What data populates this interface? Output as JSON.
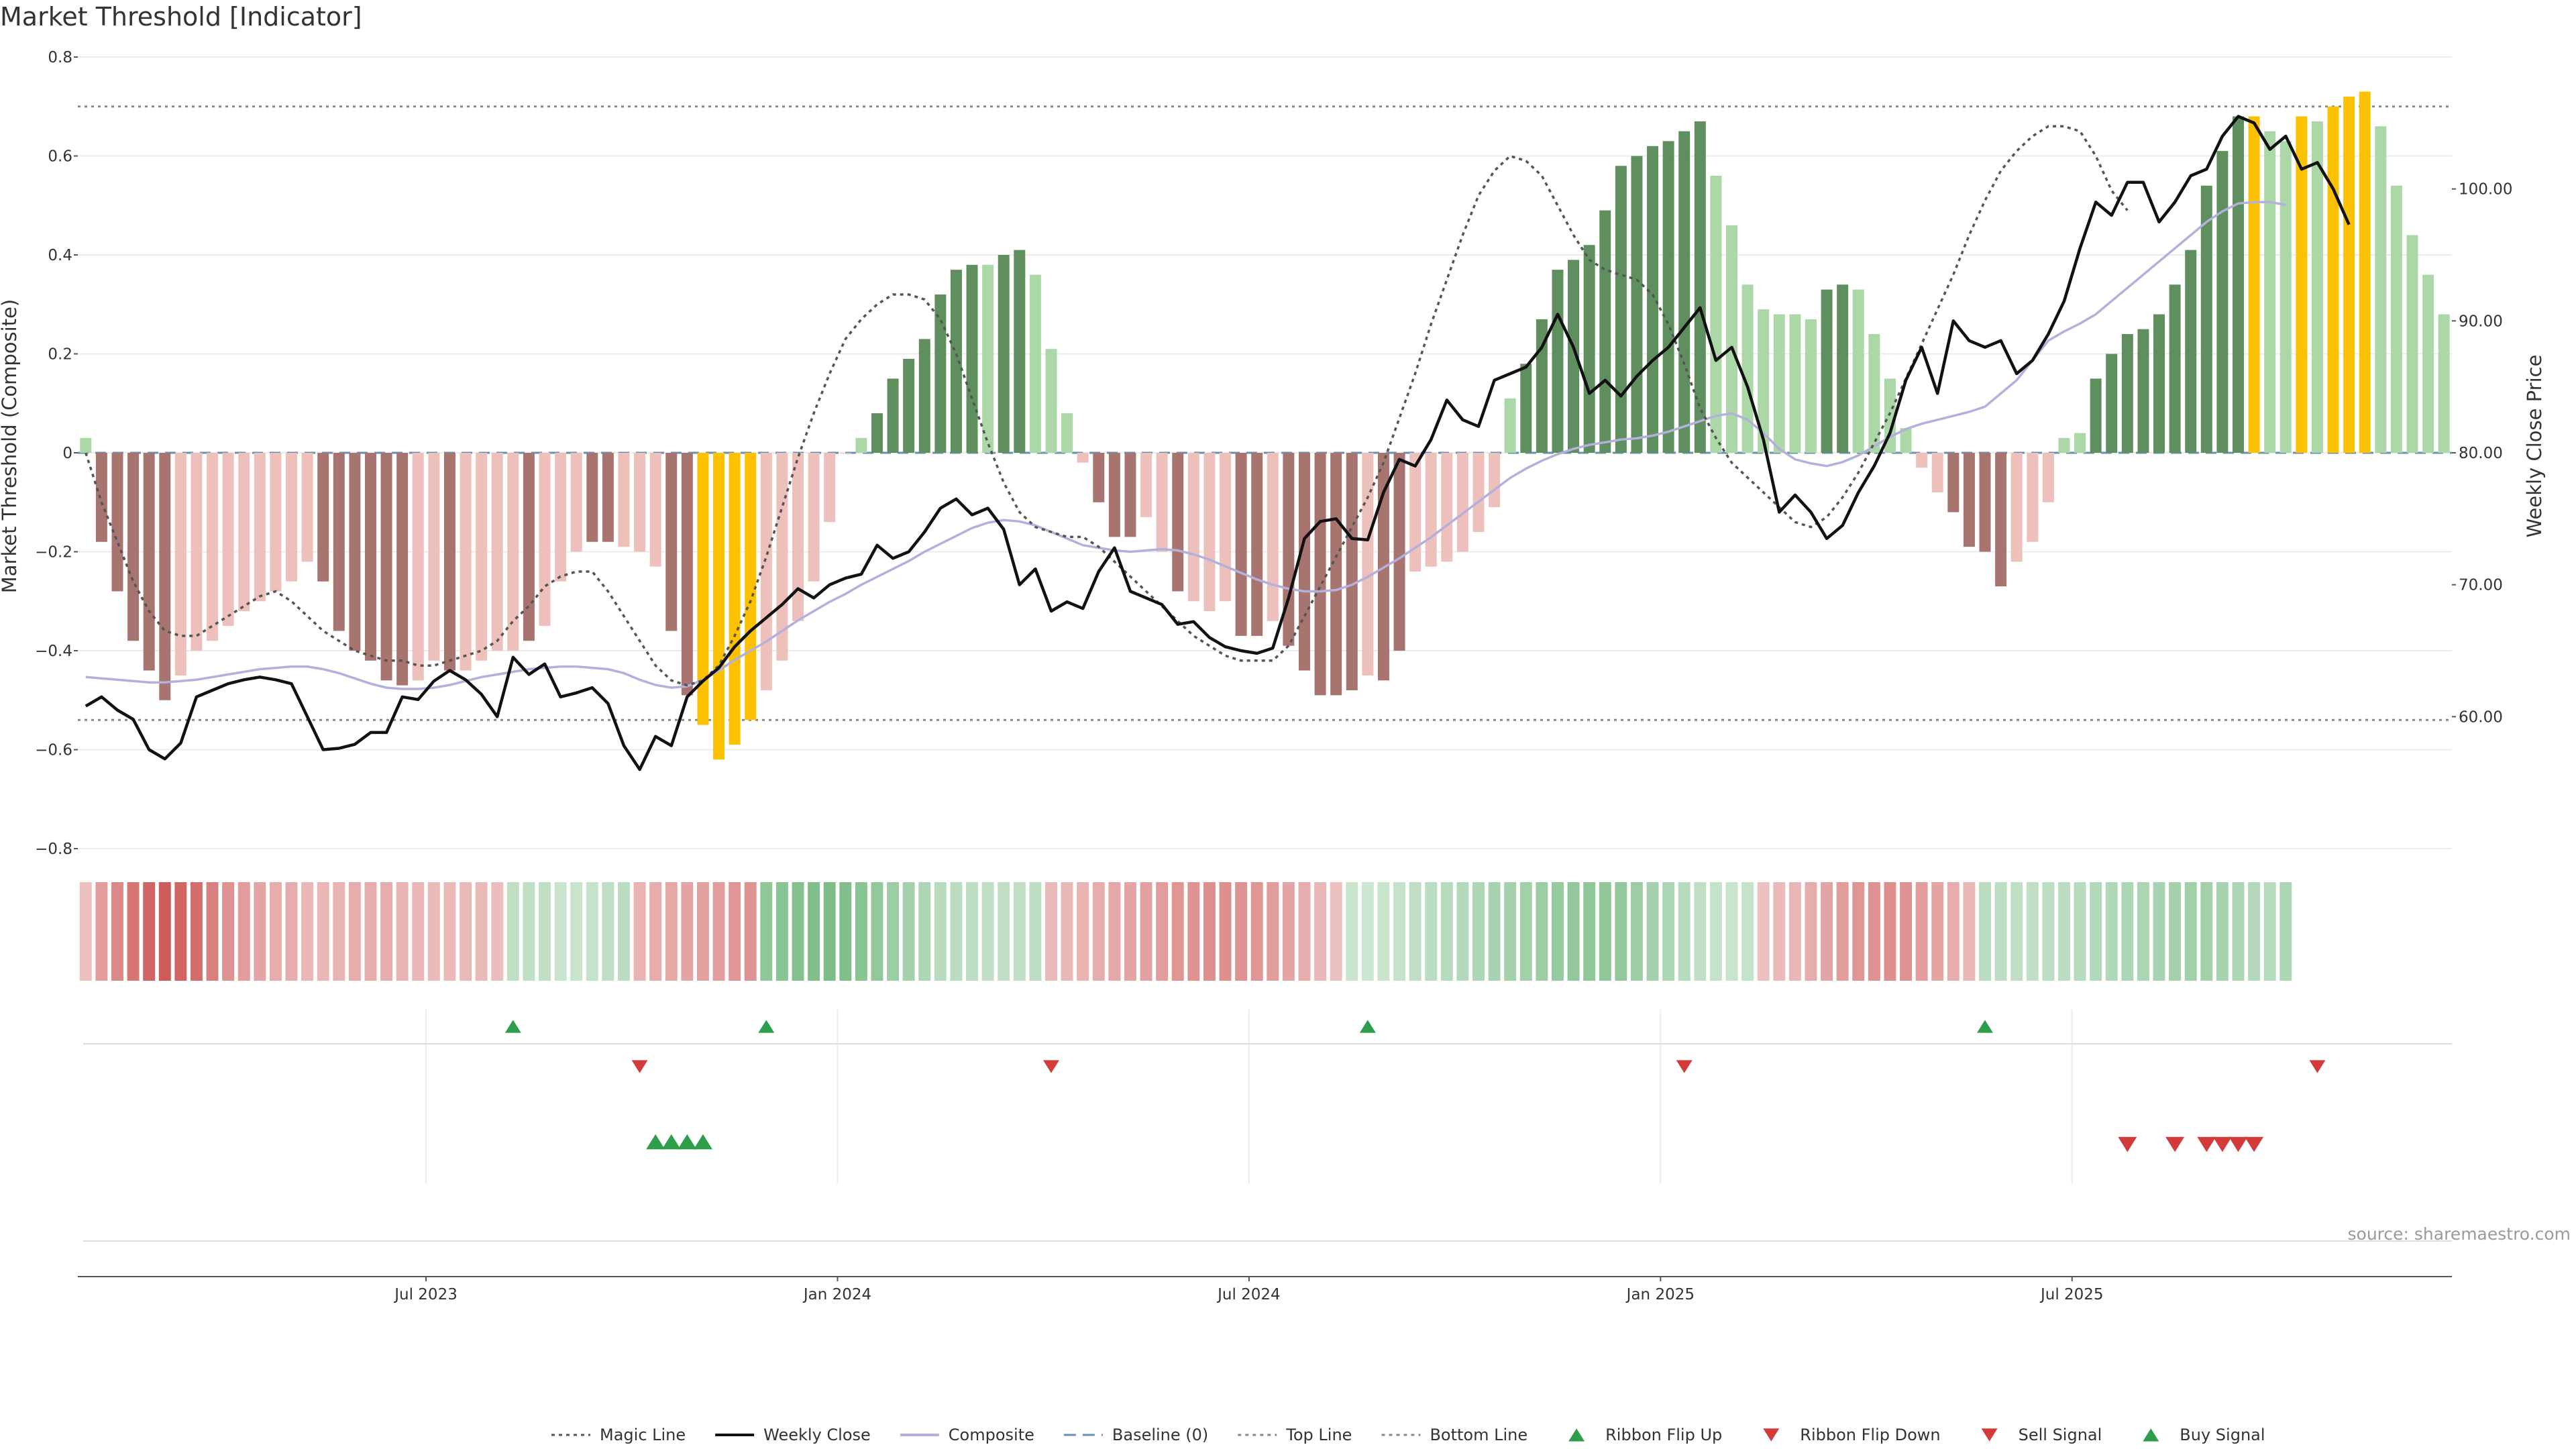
{
  "title": "Market Threshold [Indicator]",
  "source": "source: sharemaestro.com",
  "colors": {
    "bar_dark_red": "#a87470",
    "bar_light_red": "#edc0bb",
    "bar_dark_green": "#5f8f5f",
    "bar_light_green": "#acd8a8",
    "bar_gold": "#fcc100",
    "magic_line": "#555555",
    "weekly_close": "#111111",
    "composite": "#b3b0dc",
    "baseline": "#6a8fb0",
    "threshold_lines": "#888888",
    "signal_up": "#2e9e4a",
    "signal_down": "#d33a3a"
  },
  "chart_data": {
    "type": "bar",
    "y_axis_left": {
      "label": "Market Threshold (Composite)",
      "ylim": [
        -0.8,
        0.8
      ],
      "ticks": [
        {
          "v": 0.8,
          "label": "0.8"
        },
        {
          "v": 0.6,
          "label": "0.6"
        },
        {
          "v": 0.4,
          "label": "0.4"
        },
        {
          "v": 0.2,
          "label": "0.2"
        },
        {
          "v": 0,
          "label": "0"
        },
        {
          "v": -0.2,
          "label": "−0.2"
        },
        {
          "v": -0.4,
          "label": "−0.4"
        },
        {
          "v": -0.6,
          "label": "−0.6"
        },
        {
          "v": -0.8,
          "label": "−0.8"
        }
      ]
    },
    "y_axis_right": {
      "label": "Weekly Close Price",
      "ylim": [
        50,
        110
      ],
      "ticks": [
        {
          "v": 100,
          "label": "100.00"
        },
        {
          "v": 90,
          "label": "90.00"
        },
        {
          "v": 80,
          "label": "80.00"
        },
        {
          "v": 70,
          "label": "70.00"
        },
        {
          "v": 60,
          "label": "60.00"
        }
      ]
    },
    "x_axis": {
      "ticks": [
        {
          "label": "Jul 2023",
          "week": 21.5
        },
        {
          "label": "Jan 2024",
          "week": 47.5
        },
        {
          "label": "Jul 2024",
          "week": 73.5
        },
        {
          "label": "Jan 2025",
          "week": 99.5
        },
        {
          "label": "Jul 2025",
          "week": 125.5
        }
      ]
    },
    "top_line": 0.7,
    "bottom_line": -0.54,
    "composite_bars": [
      0.03,
      -0.18,
      -0.28,
      -0.38,
      -0.44,
      -0.5,
      -0.45,
      -0.4,
      -0.38,
      -0.35,
      -0.32,
      -0.3,
      -0.28,
      -0.26,
      -0.22,
      -0.26,
      -0.36,
      -0.4,
      -0.42,
      -0.46,
      -0.47,
      -0.46,
      -0.42,
      -0.44,
      -0.44,
      -0.42,
      -0.4,
      -0.4,
      -0.38,
      -0.35,
      -0.26,
      -0.2,
      -0.18,
      -0.18,
      -0.19,
      -0.2,
      -0.23,
      -0.36,
      -0.49,
      -0.55,
      -0.62,
      -0.59,
      -0.54,
      -0.48,
      -0.42,
      -0.34,
      -0.26,
      -0.14,
      0.0,
      0.03,
      0.08,
      0.15,
      0.19,
      0.23,
      0.32,
      0.37,
      0.38,
      0.38,
      0.4,
      0.41,
      0.36,
      0.21,
      0.08,
      -0.02,
      -0.1,
      -0.17,
      -0.17,
      -0.13,
      -0.2,
      -0.28,
      -0.3,
      -0.32,
      -0.3,
      -0.37,
      -0.37,
      -0.34,
      -0.39,
      -0.44,
      -0.49,
      -0.49,
      -0.48,
      -0.45,
      -0.46,
      -0.4,
      -0.24,
      -0.23,
      -0.22,
      -0.2,
      -0.16,
      -0.11,
      0.11,
      0.18,
      0.27,
      0.37,
      0.39,
      0.42,
      0.49,
      0.58,
      0.6,
      0.62,
      0.63,
      0.65,
      0.67,
      0.56,
      0.46,
      0.34,
      0.29,
      0.28,
      0.28,
      0.27,
      0.33,
      0.34,
      0.33,
      0.24,
      0.15,
      0.05,
      -0.03,
      -0.08,
      -0.12,
      -0.19,
      -0.2,
      -0.27,
      -0.22,
      -0.18,
      -0.1,
      0.03,
      0.04,
      0.15,
      0.2,
      0.24,
      0.25,
      0.28,
      0.34,
      0.41,
      0.54,
      0.61,
      0.68,
      0.68,
      0.65,
      0.63,
      0.68,
      0.67,
      0.7,
      0.72,
      0.73,
      0.66,
      0.54,
      0.44,
      0.36,
      0.28
    ],
    "bar_colors": [
      "light_green",
      "dark_red",
      "dark_red",
      "dark_red",
      "dark_red",
      "dark_red",
      "light_red",
      "light_red",
      "light_red",
      "light_red",
      "light_red",
      "light_red",
      "light_red",
      "light_red",
      "light_red",
      "dark_red",
      "dark_red",
      "dark_red",
      "dark_red",
      "dark_red",
      "dark_red",
      "light_red",
      "light_red",
      "dark_red",
      "light_red",
      "light_red",
      "light_red",
      "light_red",
      "dark_red",
      "light_red",
      "light_red",
      "light_red",
      "dark_red",
      "dark_red",
      "light_red",
      "light_red",
      "light_red",
      "dark_red",
      "dark_red",
      "gold",
      "gold",
      "gold",
      "gold",
      "light_red",
      "light_red",
      "light_red",
      "light_red",
      "light_red",
      "light_red",
      "light_green",
      "dark_green",
      "dark_green",
      "dark_green",
      "dark_green",
      "dark_green",
      "dark_green",
      "dark_green",
      "light_green",
      "dark_green",
      "dark_green",
      "light_green",
      "light_green",
      "light_green",
      "light_red",
      "dark_red",
      "dark_red",
      "dark_red",
      "light_red",
      "light_red",
      "dark_red",
      "light_red",
      "light_red",
      "light_red",
      "dark_red",
      "dark_red",
      "light_red",
      "dark_red",
      "dark_red",
      "dark_red",
      "dark_red",
      "dark_red",
      "light_red",
      "dark_red",
      "dark_red",
      "light_red",
      "light_red",
      "light_red",
      "light_red",
      "light_red",
      "light_red",
      "light_green",
      "dark_green",
      "dark_green",
      "dark_green",
      "dark_green",
      "dark_green",
      "dark_green",
      "dark_green",
      "dark_green",
      "dark_green",
      "dark_green",
      "dark_green",
      "dark_green",
      "light_green",
      "light_green",
      "light_green",
      "light_green",
      "light_green",
      "light_green",
      "light_green",
      "dark_green",
      "dark_green",
      "light_green",
      "light_green",
      "light_green",
      "light_green",
      "light_red",
      "light_red",
      "dark_red",
      "dark_red",
      "dark_red",
      "dark_red",
      "light_red",
      "light_red",
      "light_red",
      "light_green",
      "light_green",
      "dark_green",
      "dark_green",
      "dark_green",
      "dark_green",
      "dark_green",
      "dark_green",
      "dark_green",
      "dark_green",
      "dark_green",
      "dark_green",
      "gold",
      "light_green",
      "light_green",
      "gold",
      "light_green",
      "gold",
      "gold",
      "gold",
      "light_green",
      "light_green",
      "light_green",
      "light_green",
      "light_green"
    ],
    "magic_line": [
      0.0,
      -0.1,
      -0.18,
      -0.26,
      -0.32,
      -0.36,
      -0.37,
      -0.37,
      -0.35,
      -0.33,
      -0.31,
      -0.29,
      -0.28,
      -0.3,
      -0.33,
      -0.36,
      -0.38,
      -0.4,
      -0.41,
      -0.42,
      -0.42,
      -0.43,
      -0.43,
      -0.42,
      -0.41,
      -0.4,
      -0.38,
      -0.34,
      -0.31,
      -0.27,
      -0.25,
      -0.24,
      -0.24,
      -0.28,
      -0.33,
      -0.38,
      -0.43,
      -0.46,
      -0.47,
      -0.46,
      -0.43,
      -0.37,
      -0.3,
      -0.21,
      -0.11,
      -0.01,
      0.08,
      0.16,
      0.23,
      0.27,
      0.3,
      0.32,
      0.32,
      0.31,
      0.27,
      0.2,
      0.11,
      0.02,
      -0.06,
      -0.12,
      -0.15,
      -0.16,
      -0.17,
      -0.17,
      -0.19,
      -0.22,
      -0.25,
      -0.28,
      -0.31,
      -0.34,
      -0.37,
      -0.39,
      -0.41,
      -0.42,
      -0.42,
      -0.42,
      -0.39,
      -0.33,
      -0.27,
      -0.21,
      -0.15,
      -0.09,
      -0.02,
      0.07,
      0.16,
      0.26,
      0.35,
      0.44,
      0.52,
      0.57,
      0.6,
      0.59,
      0.56,
      0.5,
      0.44,
      0.39,
      0.37,
      0.36,
      0.35,
      0.32,
      0.26,
      0.18,
      0.09,
      0.03,
      -0.02,
      -0.05,
      -0.08,
      -0.11,
      -0.14,
      -0.15,
      -0.13,
      -0.09,
      -0.04,
      0.02,
      0.08,
      0.15,
      0.22,
      0.29,
      0.36,
      0.44,
      0.51,
      0.57,
      0.61,
      0.64,
      0.66,
      0.66,
      0.65,
      0.6,
      0.53,
      0.49
    ],
    "composite_line_x_start": 50,
    "weekly_close": [
      60.8,
      61.5,
      60.5,
      59.8,
      57.5,
      56.8,
      58.0,
      61.5,
      62.0,
      62.5,
      62.8,
      63.0,
      62.8,
      62.5,
      60.0,
      57.5,
      57.6,
      57.9,
      58.8,
      58.8,
      61.5,
      61.3,
      62.7,
      63.5,
      62.8,
      61.7,
      60.0,
      64.5,
      63.2,
      64.0,
      61.5,
      61.8,
      62.2,
      61.0,
      57.8,
      56.0,
      58.5,
      57.8,
      61.5,
      62.7,
      63.7,
      65.3,
      66.5,
      67.5,
      68.5,
      69.7,
      69.0,
      70.0,
      70.5,
      70.8,
      73.0,
      72.0,
      72.5,
      74.0,
      75.8,
      76.5,
      75.3,
      75.8,
      74.2,
      70.0,
      71.2,
      68.0,
      68.7,
      68.2,
      71.0,
      72.8,
      69.5,
      69.0,
      68.5,
      67.0,
      67.2,
      66.0,
      65.3,
      65.0,
      64.8,
      65.2,
      69.0,
      73.5,
      74.8,
      75.0,
      73.5,
      73.4,
      77.0,
      79.5,
      79.0,
      81.0,
      84.0,
      82.5,
      82.0,
      85.5,
      86.0,
      86.5,
      88.0,
      90.5,
      88.0,
      84.5,
      85.5,
      84.3,
      85.8,
      87.0,
      88.0,
      89.5,
      91.0,
      87.0,
      88.0,
      85.0,
      81.0,
      75.5,
      76.8,
      75.5,
      73.5,
      74.5,
      77.0,
      79.0,
      81.5,
      85.5,
      88.0,
      84.5,
      90.0,
      88.5,
      88.0,
      88.5,
      86.0,
      87.0,
      89.0,
      91.5,
      95.5,
      99.0,
      98.0,
      100.5,
      100.5,
      97.5,
      99.0,
      101.0,
      101.5,
      104.0,
      105.5,
      105.0,
      103.0,
      104.0,
      101.5,
      102.0,
      100.0,
      97.3
    ],
    "composite_line": [
      63.0,
      62.9,
      62.8,
      62.7,
      62.6,
      62.6,
      62.7,
      62.8,
      63.0,
      63.2,
      63.4,
      63.6,
      63.7,
      63.8,
      63.8,
      63.6,
      63.3,
      62.9,
      62.5,
      62.2,
      62.1,
      62.1,
      62.2,
      62.4,
      62.7,
      63.0,
      63.2,
      63.4,
      63.6,
      63.7,
      63.8,
      63.8,
      63.7,
      63.6,
      63.3,
      62.8,
      62.4,
      62.2,
      62.3,
      62.8,
      63.5,
      64.3,
      65.0,
      65.7,
      66.5,
      67.3,
      68.0,
      68.7,
      69.3,
      70.0,
      70.6,
      71.2,
      71.8,
      72.5,
      73.1,
      73.7,
      74.3,
      74.7,
      74.9,
      74.8,
      74.5,
      74.0,
      73.5,
      73.0,
      72.8,
      72.6,
      72.5,
      72.6,
      72.7,
      72.6,
      72.3,
      71.9,
      71.4,
      70.9,
      70.4,
      70.0,
      69.7,
      69.5,
      69.5,
      69.6,
      70.0,
      70.6,
      71.3,
      72.0,
      72.8,
      73.6,
      74.5,
      75.4,
      76.3,
      77.2,
      78.1,
      78.8,
      79.4,
      79.9,
      80.3,
      80.6,
      80.8,
      81.0,
      81.1,
      81.3,
      81.6,
      82.0,
      82.4,
      82.8,
      83.0,
      82.5,
      81.5,
      80.3,
      79.5,
      79.2,
      79.0,
      79.3,
      79.8,
      80.5,
      81.2,
      81.8,
      82.2,
      82.5,
      82.8,
      83.1,
      83.5,
      84.5,
      85.5,
      87.0,
      88.5,
      89.2,
      89.8,
      90.5,
      91.5,
      92.5,
      93.5,
      94.5,
      95.5,
      96.5,
      97.5,
      98.3,
      98.9,
      99.0,
      99.0,
      98.8
    ],
    "ribbon": {
      "alphas": [
        0.35,
        0.55,
        0.65,
        0.75,
        0.85,
        0.9,
        0.85,
        0.8,
        0.7,
        0.6,
        0.55,
        0.5,
        0.45,
        0.45,
        0.4,
        0.4,
        0.42,
        0.45,
        0.45,
        0.45,
        0.42,
        0.4,
        0.38,
        0.38,
        0.38,
        0.38,
        0.36,
        0.35,
        0.35,
        0.35,
        0.3,
        0.3,
        0.32,
        0.35,
        0.38,
        0.42,
        0.45,
        0.48,
        0.5,
        0.52,
        0.55,
        0.58,
        0.6,
        0.62,
        0.65,
        0.68,
        0.7,
        0.72,
        0.7,
        0.65,
        0.6,
        0.55,
        0.5,
        0.45,
        0.4,
        0.38,
        0.36,
        0.35,
        0.35,
        0.35,
        0.36,
        0.38,
        0.4,
        0.42,
        0.45,
        0.48,
        0.5,
        0.52,
        0.55,
        0.58,
        0.6,
        0.62,
        0.62,
        0.6,
        0.58,
        0.55,
        0.5,
        0.45,
        0.4,
        0.35,
        0.3,
        0.28,
        0.3,
        0.32,
        0.35,
        0.38,
        0.4,
        0.42,
        0.45,
        0.48,
        0.5,
        0.52,
        0.55,
        0.58,
        0.6,
        0.62,
        0.62,
        0.6,
        0.55,
        0.5,
        0.45,
        0.4,
        0.35,
        0.32,
        0.3,
        0.32,
        0.35,
        0.38,
        0.4,
        0.45,
        0.5,
        0.55,
        0.58,
        0.6,
        0.62,
        0.6,
        0.55,
        0.5,
        0.45,
        0.4,
        0.38,
        0.36,
        0.35,
        0.35,
        0.36,
        0.38,
        0.4,
        0.42,
        0.44,
        0.45,
        0.46,
        0.48,
        0.5,
        0.52,
        0.5,
        0.48,
        0.45,
        0.42,
        0.4,
        0.45
      ],
      "green_ranges": [
        [
          27,
          34
        ],
        [
          43,
          60
        ],
        [
          80,
          105
        ],
        [
          120,
          139
        ]
      ]
    },
    "ribbon_flip_up_weeks": [
      27,
      43,
      81,
      120
    ],
    "ribbon_flip_down_weeks": [
      35,
      61,
      101,
      141
    ],
    "buy_signal_weeks": [
      36,
      37,
      38,
      39
    ],
    "sell_signal_weeks": [
      129,
      132,
      134,
      135,
      136,
      137
    ],
    "legend": [
      {
        "label": "Magic Line",
        "kind": "dotted",
        "color_key": "magic_line"
      },
      {
        "label": "Weekly Close",
        "kind": "solid",
        "color_key": "weekly_close"
      },
      {
        "label": "Composite",
        "kind": "solid",
        "color_key": "composite"
      },
      {
        "label": "Baseline (0)",
        "kind": "dashed",
        "color_key": "baseline"
      },
      {
        "label": "Top Line",
        "kind": "dotted",
        "color_key": "threshold_lines"
      },
      {
        "label": "Bottom Line",
        "kind": "dotted",
        "color_key": "threshold_lines"
      },
      {
        "label": "Ribbon Flip Up",
        "kind": "tri-up",
        "color_key": "signal_up"
      },
      {
        "label": "Ribbon Flip Down",
        "kind": "tri-down",
        "color_key": "signal_down"
      },
      {
        "label": "Sell Signal",
        "kind": "tri-down",
        "color_key": "signal_down"
      },
      {
        "label": "Buy Signal",
        "kind": "tri-up",
        "color_key": "signal_up"
      }
    ]
  }
}
